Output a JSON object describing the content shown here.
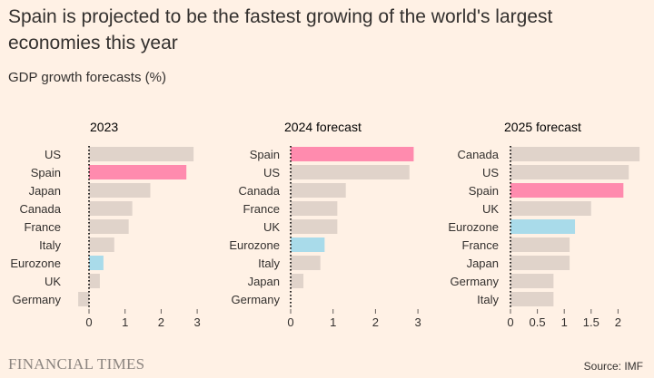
{
  "title": "Spain is projected to be the fastest growing of the world's largest economies this year",
  "subtitle": "GDP growth forecasts (%)",
  "source": "Source: IMF",
  "brand": "FINANCIAL TIMES",
  "colors": {
    "default": "#e0d3ca",
    "spain": "#ff8bae",
    "eurozone": "#a9dbea",
    "background": "#fff1e5"
  },
  "chart_data": [
    {
      "type": "bar",
      "orientation": "horizontal",
      "title": "2023",
      "categories": [
        "US",
        "Spain",
        "Japan",
        "Canada",
        "France",
        "Italy",
        "Eurozone",
        "UK",
        "Germany"
      ],
      "values": [
        2.9,
        2.7,
        1.7,
        1.2,
        1.1,
        0.7,
        0.4,
        0.3,
        -0.3
      ],
      "xlim": [
        -0.5,
        3
      ],
      "ticks": [
        0,
        1,
        2,
        3
      ],
      "tick_labels": [
        "0",
        "1",
        "2",
        "3"
      ]
    },
    {
      "type": "bar",
      "orientation": "horizontal",
      "title": "2024 forecast",
      "categories": [
        "Spain",
        "US",
        "Canada",
        "France",
        "UK",
        "Eurozone",
        "Italy",
        "Japan",
        "Germany"
      ],
      "values": [
        2.9,
        2.8,
        1.3,
        1.1,
        1.1,
        0.8,
        0.7,
        0.3,
        0.0
      ],
      "xlim": [
        0,
        3
      ],
      "ticks": [
        0,
        1,
        2,
        3
      ],
      "tick_labels": [
        "0",
        "1",
        "2",
        "3"
      ]
    },
    {
      "type": "bar",
      "orientation": "horizontal",
      "title": "2025 forecast",
      "categories": [
        "Canada",
        "US",
        "Spain",
        "UK",
        "Eurozone",
        "France",
        "Japan",
        "Germany",
        "Italy"
      ],
      "values": [
        2.4,
        2.2,
        2.1,
        1.5,
        1.2,
        1.1,
        1.1,
        0.8,
        0.8
      ],
      "xlim": [
        0,
        2.4
      ],
      "ticks": [
        0,
        0.5,
        1,
        1.5,
        2
      ],
      "tick_labels": [
        "0",
        "0.5",
        "1",
        "1.5",
        "2"
      ]
    }
  ]
}
